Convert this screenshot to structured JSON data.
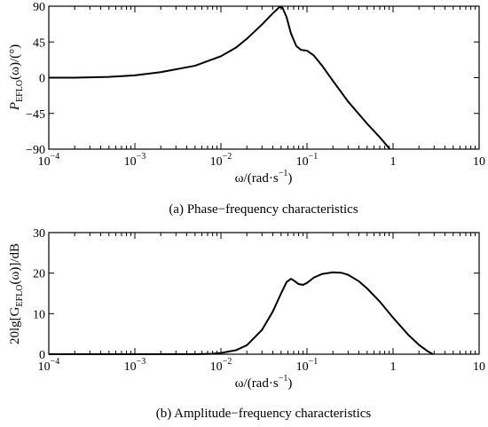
{
  "chart_data": [
    {
      "type": "line",
      "xscale": "log",
      "xlim": [
        0.0001,
        10
      ],
      "ylim": [
        -90,
        90
      ],
      "x_ticks": [
        {
          "base": "10",
          "exp": "−4",
          "value": 0.0001
        },
        {
          "base": "10",
          "exp": "−3",
          "value": 0.001
        },
        {
          "base": "10",
          "exp": "−2",
          "value": 0.01
        },
        {
          "base": "10",
          "exp": "−1",
          "value": 0.1
        },
        {
          "base": "1",
          "exp": "",
          "value": 1
        },
        {
          "base": "10",
          "exp": "",
          "value": 10
        }
      ],
      "y_ticks": [
        {
          "label": "90",
          "value": 90
        },
        {
          "label": "45",
          "value": 45
        },
        {
          "label": "0",
          "value": 0
        },
        {
          "label": "−45",
          "value": -45
        },
        {
          "label": "−90",
          "value": -90
        }
      ],
      "xlabel": {
        "main": "ω/(rad·s",
        "sup": "−1",
        "tail": ")"
      },
      "ylabel": {
        "pre": "P",
        "sub": "EFLO",
        "post": "(ω)/(°)"
      },
      "caption": "(a) Phase−frequency characteristics",
      "series": [
        {
          "x": [
            0.0001,
            0.0002,
            0.0005,
            0.001,
            0.002,
            0.005,
            0.01,
            0.015,
            0.02,
            0.03,
            0.04,
            0.048,
            0.052,
            0.058,
            0.065,
            0.075,
            0.085,
            0.1,
            0.12,
            0.15,
            0.2,
            0.3,
            0.5,
            0.7,
            0.92
          ],
          "y": [
            0,
            0,
            1,
            3,
            7,
            15,
            27,
            38,
            49,
            67,
            81,
            89,
            88,
            76,
            56,
            40,
            35,
            34,
            28,
            15,
            -4,
            -30,
            -58,
            -75,
            -90
          ]
        }
      ]
    },
    {
      "type": "line",
      "xscale": "log",
      "xlim": [
        0.0001,
        10
      ],
      "ylim": [
        0,
        30
      ],
      "x_ticks": [
        {
          "base": "10",
          "exp": "−4",
          "value": 0.0001
        },
        {
          "base": "10",
          "exp": "−3",
          "value": 0.001
        },
        {
          "base": "10",
          "exp": "−2",
          "value": 0.01
        },
        {
          "base": "10",
          "exp": "−1",
          "value": 0.1
        },
        {
          "base": "1",
          "exp": "",
          "value": 1
        },
        {
          "base": "10",
          "exp": "",
          "value": 10
        }
      ],
      "y_ticks": [
        {
          "label": "30",
          "value": 30
        },
        {
          "label": "20",
          "value": 20
        },
        {
          "label": "10",
          "value": 10
        },
        {
          "label": "0",
          "value": 0
        }
      ],
      "xlabel": {
        "main": "ω/(rad·s",
        "sup": "−1",
        "tail": ")"
      },
      "ylabel": {
        "pre": "20lg[G",
        "sub": "EFLO",
        "post": "(ω)]/dB"
      },
      "caption": "(b) Amplitude−frequency characteristics",
      "series": [
        {
          "x": [
            0.0001,
            0.001,
            0.005,
            0.008,
            0.01,
            0.015,
            0.02,
            0.03,
            0.04,
            0.05,
            0.058,
            0.065,
            0.07,
            0.08,
            0.09,
            0.1,
            0.12,
            0.15,
            0.2,
            0.25,
            0.3,
            0.4,
            0.5,
            0.7,
            1.0,
            1.5,
            2.0,
            2.5,
            2.9
          ],
          "y": [
            0,
            0,
            0,
            0.1,
            0.3,
            1.0,
            2.2,
            6.0,
            10.5,
            15.0,
            17.8,
            18.6,
            18.2,
            17.3,
            17.1,
            17.6,
            18.9,
            19.8,
            20.2,
            20.1,
            19.6,
            18.0,
            16.2,
            13.0,
            9.0,
            4.8,
            2.3,
            0.8,
            0
          ]
        }
      ]
    }
  ]
}
